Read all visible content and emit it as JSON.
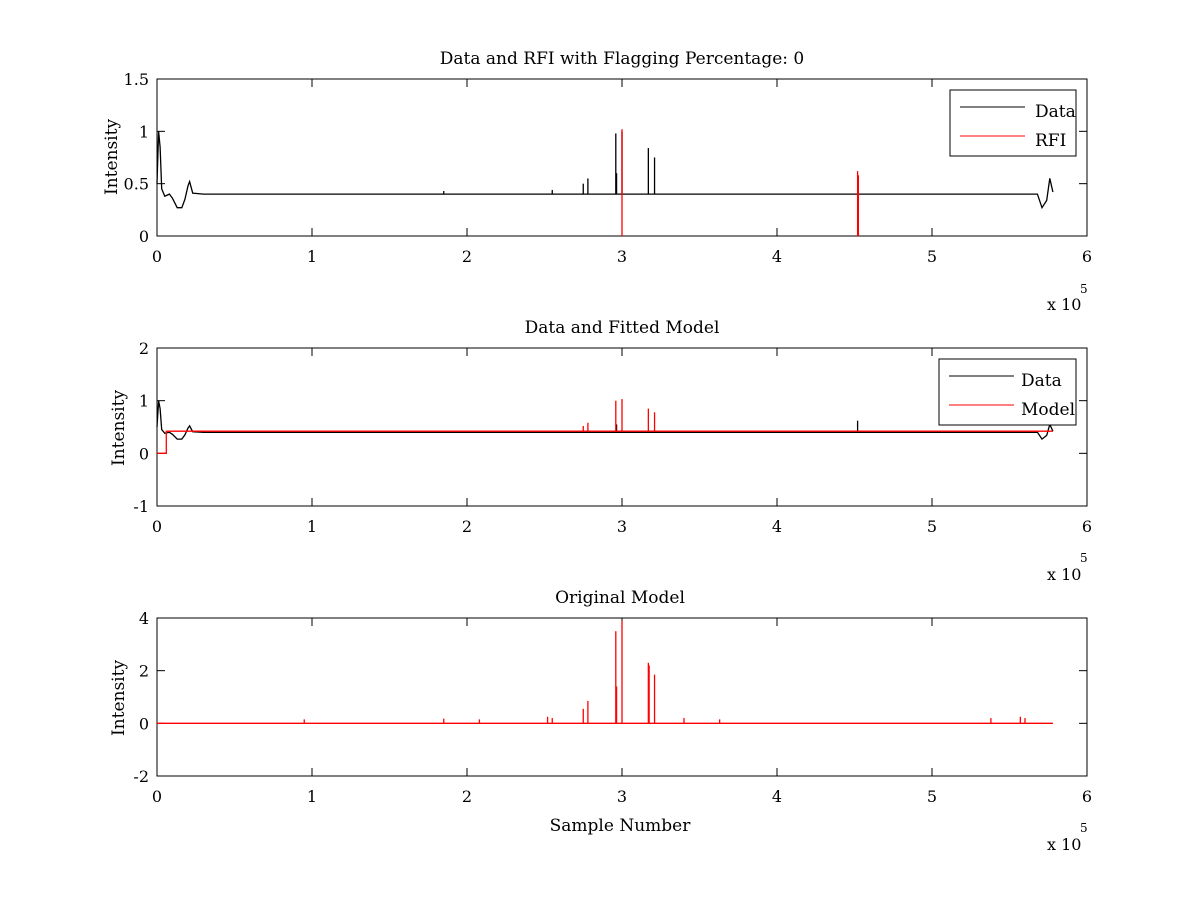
{
  "colors": {
    "data": "#000000",
    "red": "#ff0000",
    "axis": "#000000",
    "background": "#ffffff"
  },
  "chart_data": [
    {
      "type": "line",
      "title": "Data and RFI with Flagging Percentage: 0",
      "xlabel": "",
      "ylabel": "Intensity",
      "xlim": [
        0,
        6
      ],
      "ylim": [
        0,
        1.5
      ],
      "x_multiplier_label": "x 10",
      "x_multiplier_exponent": "5",
      "xticks": [
        "0",
        "1",
        "2",
        "3",
        "4",
        "5",
        "6"
      ],
      "yticks": [
        "0",
        "0.5",
        "1",
        "1.5"
      ],
      "legend": {
        "placement": "top-right",
        "entries": [
          "Data",
          "RFI"
        ]
      },
      "series": [
        {
          "name": "Data",
          "color": "#000000",
          "baseline": 0.4,
          "x": [
            0,
            0.01,
            0.02,
            0.03,
            0.05,
            0.08,
            0.1,
            0.13,
            0.16,
            0.18,
            0.2,
            0.21,
            0.23,
            0.3,
            1.0,
            2.0,
            2.9,
            3.0,
            4.0,
            5.0,
            5.6,
            5.68,
            5.71,
            5.74,
            5.76,
            5.78
          ],
          "y": [
            0.5,
            1.0,
            0.85,
            0.45,
            0.38,
            0.4,
            0.36,
            0.27,
            0.27,
            0.35,
            0.48,
            0.52,
            0.41,
            0.4,
            0.4,
            0.4,
            0.4,
            0.4,
            0.4,
            0.4,
            0.4,
            0.4,
            0.27,
            0.34,
            0.55,
            0.42
          ],
          "spikes": [
            {
              "x": 2.75,
              "y": 0.5
            },
            {
              "x": 2.78,
              "y": 0.55
            },
            {
              "x": 2.96,
              "y": 0.98
            },
            {
              "x": 2.965,
              "y": 0.6
            },
            {
              "x": 3.0,
              "y": 1.0
            },
            {
              "x": 3.17,
              "y": 0.84
            },
            {
              "x": 3.21,
              "y": 0.75
            },
            {
              "x": 2.55,
              "y": 0.44
            },
            {
              "x": 1.85,
              "y": 0.43
            }
          ]
        },
        {
          "name": "RFI",
          "color": "#ff0000",
          "spikes": [
            {
              "x": 3.0,
              "y": 1.02
            },
            {
              "x": 4.52,
              "y": 0.62
            },
            {
              "x": 4.525,
              "y": 0.58
            }
          ]
        }
      ]
    },
    {
      "type": "line",
      "title": "Data and Fitted Model",
      "xlabel": "",
      "ylabel": "Intensity",
      "xlim": [
        0,
        6
      ],
      "ylim": [
        -1,
        2
      ],
      "x_multiplier_label": "x 10",
      "x_multiplier_exponent": "5",
      "xticks": [
        "0",
        "1",
        "2",
        "3",
        "4",
        "5",
        "6"
      ],
      "yticks": [
        "-1",
        "0",
        "1",
        "2"
      ],
      "legend": {
        "placement": "top-right",
        "entries": [
          "Data",
          "Model"
        ]
      },
      "series": [
        {
          "name": "Data",
          "color": "#000000",
          "baseline": 0.4,
          "x": [
            0,
            0.01,
            0.02,
            0.03,
            0.05,
            0.08,
            0.1,
            0.13,
            0.16,
            0.18,
            0.2,
            0.21,
            0.23,
            0.3,
            2.0,
            4.0,
            5.6,
            5.68,
            5.71,
            5.74,
            5.76,
            5.78
          ],
          "y": [
            0.5,
            1.0,
            0.85,
            0.45,
            0.38,
            0.4,
            0.36,
            0.27,
            0.27,
            0.35,
            0.48,
            0.52,
            0.41,
            0.4,
            0.4,
            0.4,
            0.4,
            0.4,
            0.27,
            0.34,
            0.55,
            0.42
          ],
          "spikes": [
            {
              "x": 4.52,
              "y": 0.62
            },
            {
              "x": 2.965,
              "y": 0.55
            }
          ]
        },
        {
          "name": "Model",
          "color": "#ff0000",
          "baseline": 0.42,
          "x": [
            0,
            0.05,
            0.05,
            0.06,
            0.06,
            5.78
          ],
          "y": [
            0.0,
            0.0,
            0.0,
            0.0,
            0.42,
            0.42
          ],
          "spikes": [
            {
              "x": 2.75,
              "y": 0.52
            },
            {
              "x": 2.78,
              "y": 0.58
            },
            {
              "x": 2.96,
              "y": 1.0
            },
            {
              "x": 3.0,
              "y": 1.03
            },
            {
              "x": 3.17,
              "y": 0.85
            },
            {
              "x": 3.21,
              "y": 0.78
            }
          ]
        }
      ]
    },
    {
      "type": "line",
      "title": "Original Model",
      "xlabel": "Sample Number",
      "ylabel": "Intensity",
      "xlim": [
        0,
        6
      ],
      "ylim": [
        -2,
        4
      ],
      "x_multiplier_label": "x 10",
      "x_multiplier_exponent": "5",
      "xticks": [
        "0",
        "1",
        "2",
        "3",
        "4",
        "5",
        "6"
      ],
      "yticks": [
        "-2",
        "0",
        "2",
        "4"
      ],
      "series": [
        {
          "color": "#ff0000",
          "baseline": 0.0,
          "x": [
            0,
            5.78
          ],
          "y": [
            0.0,
            0.0
          ],
          "spikes": [
            {
              "x": 2.75,
              "y": 0.55
            },
            {
              "x": 2.78,
              "y": 0.85
            },
            {
              "x": 2.96,
              "y": 3.5
            },
            {
              "x": 2.965,
              "y": 1.4
            },
            {
              "x": 3.0,
              "y": 3.9
            },
            {
              "x": 3.17,
              "y": 2.3
            },
            {
              "x": 3.175,
              "y": 2.2
            },
            {
              "x": 3.21,
              "y": 1.85
            },
            {
              "x": 2.52,
              "y": 0.25
            },
            {
              "x": 2.55,
              "y": 0.2
            },
            {
              "x": 3.4,
              "y": 0.2
            },
            {
              "x": 5.38,
              "y": 0.2
            },
            {
              "x": 5.57,
              "y": 0.25
            },
            {
              "x": 5.6,
              "y": 0.2
            },
            {
              "x": 1.85,
              "y": 0.18
            },
            {
              "x": 0.95,
              "y": 0.15
            },
            {
              "x": 2.08,
              "y": 0.15
            },
            {
              "x": 3.63,
              "y": 0.15
            }
          ]
        }
      ]
    }
  ]
}
